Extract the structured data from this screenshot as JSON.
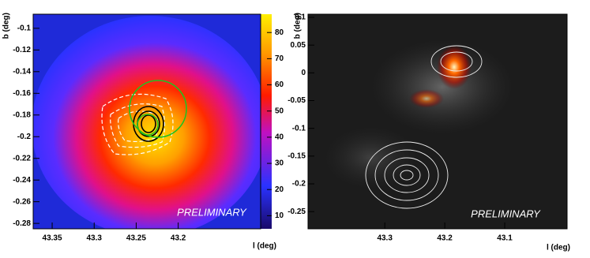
{
  "chart_data": [
    {
      "type": "heatmap",
      "xlabel": "l (deg)",
      "ylabel": "b (deg)",
      "annotation": "PRELIMINARY",
      "xlim": [
        43.3726,
        43.1019
      ],
      "xticks": [
        43.35,
        43.3,
        43.25,
        43.2
      ],
      "ylim": [
        -0.285,
        -0.087
      ],
      "yticks": [
        -0.1,
        -0.12,
        -0.14,
        -0.16,
        -0.18,
        -0.2,
        -0.22,
        -0.24,
        -0.26,
        -0.28
      ],
      "zlim": [
        5,
        87
      ],
      "zticks": [
        10,
        20,
        30,
        40,
        50,
        60,
        70,
        80
      ]
    },
    {
      "type": "heatmap",
      "xlabel": "l (deg)",
      "ylabel": "b (deg)",
      "annotation": "PRELIMINARY",
      "xlim": [
        43.428,
        42.996
      ],
      "xticks": [
        43.3,
        43.2,
        43.1
      ],
      "ylim": [
        -0.281,
        0.1057
      ],
      "yticks": [
        0.1,
        0.05,
        0,
        -0.05,
        -0.1,
        -0.15,
        -0.2,
        -0.25
      ]
    }
  ]
}
